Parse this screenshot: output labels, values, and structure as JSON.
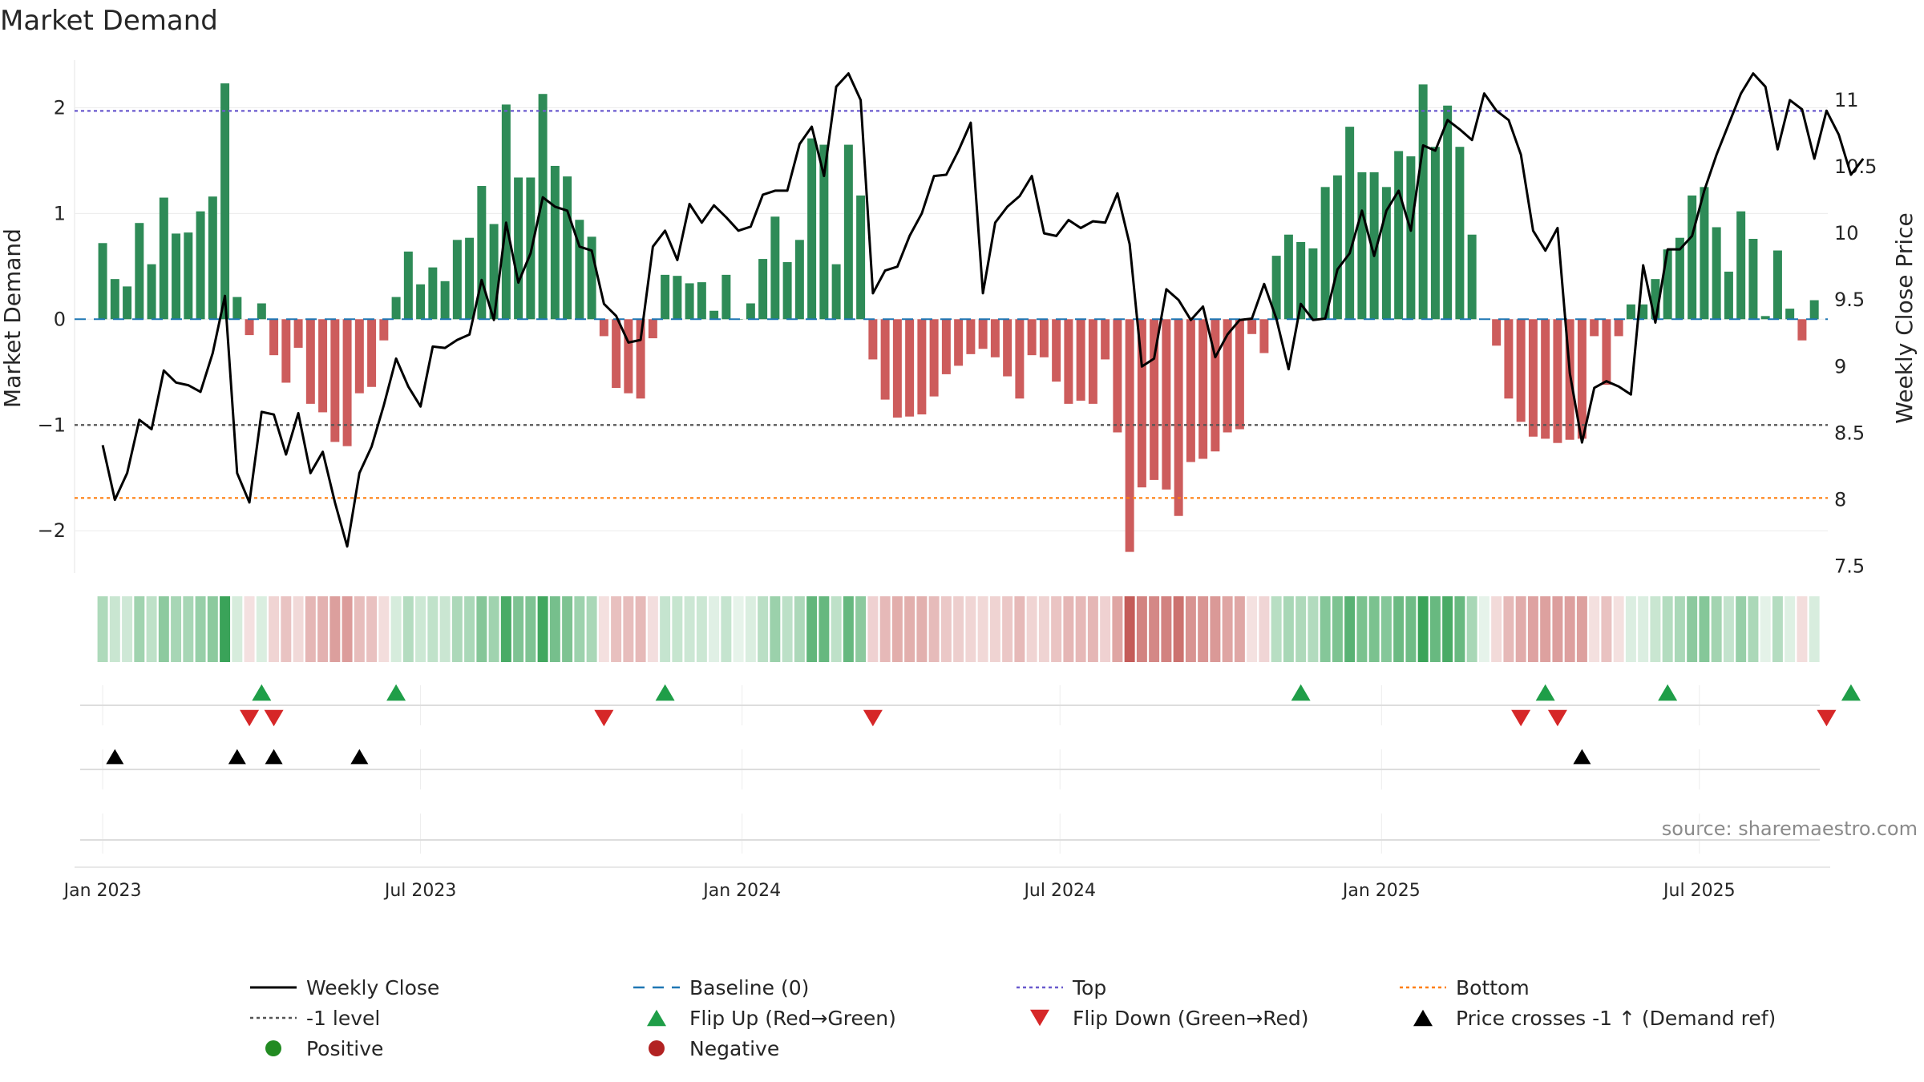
{
  "chart_data": {
    "type": "bar",
    "title": "Market Demand",
    "ylabel_left": "Market Demand",
    "ylabel_right": "Weekly Close Price",
    "left_axis": {
      "ylim": [
        -2.4,
        2.45
      ],
      "ticks": [
        -2,
        -1,
        0,
        1,
        2
      ],
      "tick_labels": [
        "−2",
        "−1",
        "0",
        "1",
        "2"
      ]
    },
    "right_axis": {
      "ylim": [
        7.45,
        11.3
      ],
      "ticks": [
        7.5,
        8,
        8.5,
        9,
        9.5,
        10,
        10.5,
        11
      ],
      "tick_labels": [
        "7.5",
        "8",
        "8.5",
        "9",
        "9.5",
        "10",
        "10.5",
        "11"
      ]
    },
    "x_range": [
      -2.3,
      141.3
    ],
    "x_ticks": [
      {
        "label": "Jan 2023",
        "x": 0
      },
      {
        "label": "Jul 2023",
        "x": 26
      },
      {
        "label": "Jan 2024",
        "x": 52.3
      },
      {
        "label": "Jul 2024",
        "x": 78.3
      },
      {
        "label": "Jan 2025",
        "x": 104.6
      },
      {
        "label": "Jul 2025",
        "x": 130.6
      }
    ],
    "reference_lines": {
      "top": 1.97,
      "bottom": -1.69,
      "minus_one": -1,
      "baseline": 0
    },
    "demand_values": [
      0.72,
      0.38,
      0.31,
      0.91,
      0.52,
      1.15,
      0.81,
      0.82,
      1.02,
      1.16,
      2.23,
      0.21,
      -0.15,
      0.15,
      -0.34,
      -0.6,
      -0.27,
      -0.8,
      -0.88,
      -1.16,
      -1.2,
      -0.7,
      -0.64,
      -0.2,
      0.21,
      0.64,
      0.33,
      0.49,
      0.36,
      0.75,
      0.77,
      1.26,
      0.9,
      2.03,
      1.34,
      1.34,
      2.13,
      1.45,
      1.35,
      0.94,
      0.78,
      -0.16,
      -0.65,
      -0.7,
      -0.75,
      -0.18,
      0.42,
      0.41,
      0.34,
      0.35,
      0.08,
      0.42,
      0.0,
      0.15,
      0.57,
      0.97,
      0.54,
      0.75,
      1.71,
      1.65,
      0.52,
      1.65,
      1.17,
      -0.38,
      -0.76,
      -0.93,
      -0.92,
      -0.9,
      -0.73,
      -0.52,
      -0.44,
      -0.33,
      -0.28,
      -0.36,
      -0.54,
      -0.75,
      -0.34,
      -0.36,
      -0.59,
      -0.8,
      -0.77,
      -0.8,
      -0.38,
      -1.07,
      -2.2,
      -1.59,
      -1.52,
      -1.61,
      -1.86,
      -1.35,
      -1.32,
      -1.25,
      -1.07,
      -1.04,
      -0.14,
      -0.32,
      0.6,
      0.8,
      0.73,
      0.67,
      1.25,
      1.36,
      1.82,
      1.39,
      1.39,
      1.25,
      1.59,
      1.54,
      2.22,
      1.63,
      2.02,
      1.63,
      0.8,
      0.0,
      -0.25,
      -0.75,
      -0.97,
      -1.11,
      -1.13,
      -1.17,
      -1.14,
      -1.13,
      -0.16,
      -0.62,
      -0.16,
      0.14,
      0.14,
      0.38,
      0.66,
      0.77,
      1.17,
      1.25,
      0.87,
      0.45,
      1.02,
      0.76,
      0.03,
      0.65,
      0.1,
      -0.2,
      0.18
    ],
    "weekly_close": [
      8.41,
      8.0,
      8.2,
      8.6,
      8.53,
      8.97,
      8.88,
      8.86,
      8.81,
      9.1,
      9.53,
      8.2,
      7.98,
      8.66,
      8.64,
      8.34,
      8.65,
      8.2,
      8.36,
      7.98,
      7.65,
      8.2,
      8.4,
      8.71,
      9.06,
      8.85,
      8.7,
      9.15,
      9.14,
      9.2,
      9.24,
      9.65,
      9.35,
      10.08,
      9.63,
      9.85,
      10.27,
      10.2,
      10.17,
      9.9,
      9.87,
      9.47,
      9.38,
      9.18,
      9.2,
      9.9,
      10.02,
      9.8,
      10.22,
      10.08,
      10.21,
      10.12,
      10.02,
      10.05,
      10.29,
      10.32,
      10.32,
      10.67,
      10.8,
      10.43,
      11.1,
      11.2,
      11.0,
      9.55,
      9.72,
      9.75,
      9.98,
      10.15,
      10.43,
      10.44,
      10.62,
      10.83,
      9.55,
      10.08,
      10.2,
      10.28,
      10.43,
      10.0,
      9.98,
      10.1,
      10.04,
      10.09,
      10.08,
      10.3,
      9.92,
      9.0,
      9.06,
      9.58,
      9.5,
      9.35,
      9.45,
      9.07,
      9.24,
      9.35,
      9.36,
      9.62,
      9.36,
      8.98,
      9.47,
      9.35,
      9.36,
      9.73,
      9.85,
      10.17,
      9.83,
      10.17,
      10.32,
      10.02,
      10.66,
      10.62,
      10.85,
      10.78,
      10.7,
      11.05,
      10.92,
      10.85,
      10.59,
      10.02,
      9.87,
      10.04,
      8.95,
      8.43,
      8.84,
      8.89,
      8.85,
      8.79,
      9.76,
      9.33,
      9.88,
      9.88,
      9.98,
      10.32,
      10.59,
      10.82,
      11.05,
      11.2,
      11.1,
      10.63,
      11.0,
      10.93,
      10.56,
      10.92,
      10.74,
      10.44,
      10.56
    ],
    "flip_up_x": [
      13,
      24,
      46,
      98,
      118,
      128,
      143
    ],
    "flip_down_x": [
      12,
      14,
      41,
      63,
      116,
      119,
      141
    ],
    "price_cross_x": [
      1,
      11,
      14,
      21,
      121
    ],
    "colors": {
      "positive_bar": "#2e8b57",
      "negative_bar": "#cd5c5c",
      "weekly_close": "#000000",
      "baseline": "#1f77b4",
      "top": "#6a5acd",
      "bottom": "#ff7f0e",
      "minus_one": "#555555",
      "flip_up": "#1f9e48",
      "flip_down": "#d62728",
      "price_cross": "#000000",
      "positive_dot": "#228b22",
      "negative_dot": "#b22222"
    },
    "legend": {
      "position": "bottom",
      "items": [
        {
          "label": "Weekly Close",
          "marker": "solid-line",
          "color": "#000000"
        },
        {
          "label": "Baseline (0)",
          "marker": "dashed-line",
          "color": "#1f77b4"
        },
        {
          "label": "Top",
          "marker": "dotted-line",
          "color": "#6a5acd"
        },
        {
          "label": "Bottom",
          "marker": "dotted-line",
          "color": "#ff7f0e"
        },
        {
          "label": "-1 level",
          "marker": "dotted-line",
          "color": "#555555"
        },
        {
          "label": "Flip Up (Red→Green)",
          "marker": "triangle-up",
          "color": "#1f9e48"
        },
        {
          "label": "Flip Down (Green→Red)",
          "marker": "triangle-down",
          "color": "#d62728"
        },
        {
          "label": "Price crosses -1 ↑ (Demand ref)",
          "marker": "triangle-up",
          "color": "#000000"
        },
        {
          "label": "Positive",
          "marker": "circle",
          "color": "#228b22"
        },
        {
          "label": "Negative",
          "marker": "circle",
          "color": "#b22222"
        }
      ]
    },
    "source_note": "source: sharemaestro.com"
  }
}
